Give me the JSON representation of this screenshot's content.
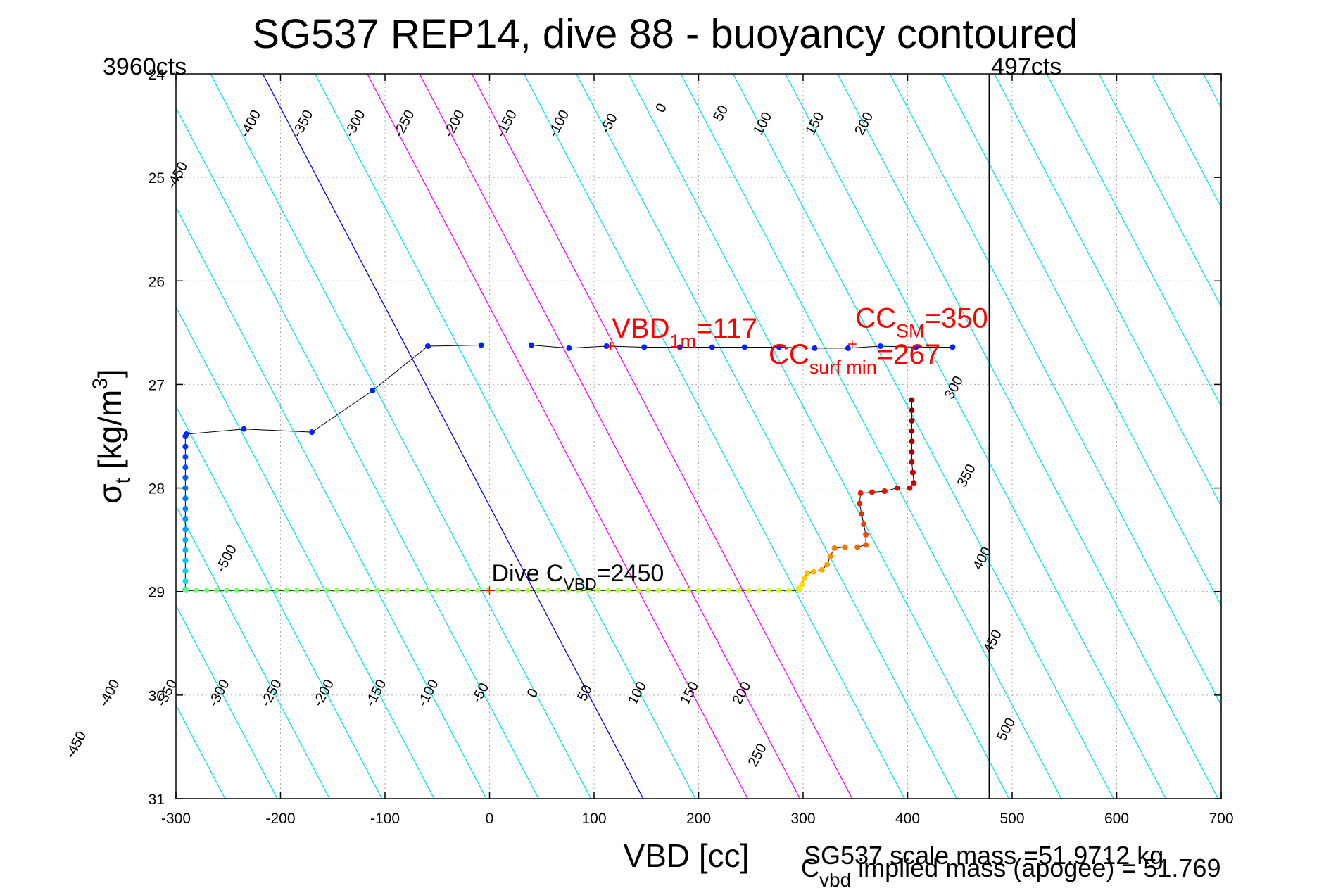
{
  "chart_data": {
    "type": "scatter",
    "title": "SG537 REP14, dive 88 - buoyancy contoured",
    "xlabel": "VBD [cc]",
    "ylabel_main": "σ",
    "ylabel_sub": "t",
    "ylabel_rest": " [kg/m",
    "ylabel_sup": "3",
    "ylabel_close": "]",
    "xlim": [
      -300,
      700
    ],
    "ylim": [
      24,
      31
    ],
    "y_reversed": true,
    "grid": true,
    "xticks": [
      -300,
      -200,
      -100,
      0,
      100,
      200,
      300,
      400,
      500,
      600,
      700
    ],
    "yticks": [
      24,
      25,
      26,
      27,
      28,
      29,
      30,
      31
    ],
    "colors": {
      "contour_negative": "#00e5ee",
      "contour_zero": "#0000dd",
      "contour_mid": "#ff00ff",
      "contour_positive": "#00e5ee",
      "track_line": "#000000",
      "annotation": "#ff0000"
    },
    "corner_labels": {
      "left": "3960cts",
      "right": "497cts",
      "right_line_x": 478
    },
    "buoyancy_contours": {
      "slope_cc_per_sigma": 52,
      "anchor_zero": {
        "x": 147,
        "y": 31
      },
      "levels": [
        -500,
        -450,
        -400,
        -350,
        -300,
        -250,
        -200,
        -150,
        -100,
        -50,
        0,
        50,
        100,
        150,
        200,
        250,
        300,
        350,
        400,
        450,
        500
      ],
      "mid_levels": [
        100,
        150,
        200
      ],
      "top_labels": [
        {
          "level": "-450",
          "x": -295,
          "y": 25.0
        },
        {
          "level": "-400",
          "x": -225,
          "y": 24.5
        },
        {
          "level": "-350",
          "x": -175,
          "y": 24.5
        },
        {
          "level": "-300",
          "x": -125,
          "y": 24.5
        },
        {
          "level": "-250",
          "x": -78,
          "y": 24.5
        },
        {
          "level": "-200",
          "x": -30,
          "y": 24.5
        },
        {
          "level": "-150",
          "x": 20,
          "y": 24.5
        },
        {
          "level": "-100",
          "x": 70,
          "y": 24.5
        },
        {
          "level": "-50",
          "x": 118,
          "y": 24.5
        },
        {
          "level": "0",
          "x": 168,
          "y": 24.35
        },
        {
          "level": "50",
          "x": 225,
          "y": 24.4
        },
        {
          "level": "100",
          "x": 265,
          "y": 24.5
        },
        {
          "level": "150",
          "x": 315,
          "y": 24.5
        },
        {
          "level": "200",
          "x": 362,
          "y": 24.5
        },
        {
          "level": "300",
          "x": 448,
          "y": 27.05
        },
        {
          "level": "350",
          "x": 460,
          "y": 27.9
        },
        {
          "level": "400",
          "x": 475,
          "y": 28.7
        },
        {
          "level": "450",
          "x": 485,
          "y": 29.5
        },
        {
          "level": "500",
          "x": 498,
          "y": 30.35
        }
      ],
      "left_labels": [
        {
          "level": "-500",
          "x": -248,
          "y": 28.7
        }
      ],
      "bottom_labels": [
        {
          "level": "-450",
          "x": -392,
          "y": 30.5
        },
        {
          "level": "-400",
          "x": -360,
          "y": 30.0
        },
        {
          "level": "-350",
          "x": -305,
          "y": 30.0
        },
        {
          "level": "-300",
          "x": -255,
          "y": 30.0
        },
        {
          "level": "-250",
          "x": -205,
          "y": 30.0
        },
        {
          "level": "-200",
          "x": -155,
          "y": 30.0
        },
        {
          "level": "-150",
          "x": -105,
          "y": 30.0
        },
        {
          "level": "-100",
          "x": -55,
          "y": 30.0
        },
        {
          "level": "-50",
          "x": -5,
          "y": 30.0
        },
        {
          "level": "0",
          "x": 45,
          "y": 30.0
        },
        {
          "level": "50",
          "x": 95,
          "y": 30.0
        },
        {
          "level": "100",
          "x": 145,
          "y": 30.0
        },
        {
          "level": "150",
          "x": 195,
          "y": 30.0
        },
        {
          "level": "200",
          "x": 245,
          "y": 30.0
        },
        {
          "level": "250",
          "x": 260,
          "y": 30.6
        }
      ]
    },
    "series": [
      {
        "label": "upper_blue",
        "color": "#0022ff",
        "points": [
          [
            -290,
            27.48
          ],
          [
            -235,
            27.43
          ],
          [
            -170,
            27.46
          ],
          [
            -112,
            27.06
          ],
          [
            -59,
            26.63
          ],
          [
            -8,
            26.62
          ],
          [
            40,
            26.62
          ],
          [
            76,
            26.65
          ],
          [
            112,
            26.63
          ],
          [
            148,
            26.64
          ],
          [
            182,
            26.64
          ],
          [
            213,
            26.64
          ],
          [
            244,
            26.64
          ],
          [
            277,
            26.64
          ],
          [
            311,
            26.65
          ],
          [
            343,
            26.65
          ],
          [
            374,
            26.63
          ],
          [
            408,
            26.64
          ],
          [
            443,
            26.64
          ]
        ]
      },
      {
        "label": "descent_column",
        "points": [
          [
            -291,
            27.5
          ],
          [
            -291,
            27.6
          ],
          [
            -291,
            27.7
          ],
          [
            -291,
            27.8
          ],
          [
            -291,
            27.9
          ],
          [
            -291,
            28.0
          ],
          [
            -291,
            28.1
          ],
          [
            -291,
            28.2
          ],
          [
            -291,
            28.3
          ],
          [
            -291,
            28.4
          ],
          [
            -291,
            28.5
          ],
          [
            -291,
            28.6
          ],
          [
            -291,
            28.7
          ],
          [
            -291,
            28.8
          ],
          [
            -291,
            28.9
          ],
          [
            -291,
            28.98
          ]
        ]
      },
      {
        "label": "bottom_green",
        "color": "#80ff60",
        "y": 28.99,
        "x_start": -290,
        "x_end": 296,
        "count": 62
      },
      {
        "label": "ascent_warm",
        "points": [
          [
            296,
            28.97
          ],
          [
            299,
            28.93
          ],
          [
            301,
            28.87
          ],
          [
            304,
            28.82
          ],
          [
            310,
            28.81
          ],
          [
            318,
            28.79
          ],
          [
            323,
            28.74
          ],
          [
            326,
            28.66
          ],
          [
            330,
            28.58
          ],
          [
            340,
            28.57
          ],
          [
            352,
            28.57
          ],
          [
            360,
            28.55
          ],
          [
            360,
            28.45
          ],
          [
            358,
            28.35
          ],
          [
            356,
            28.25
          ],
          [
            354,
            28.15
          ],
          [
            355,
            28.05
          ],
          [
            366,
            28.04
          ],
          [
            378,
            28.03
          ],
          [
            390,
            28.0
          ],
          [
            402,
            28.0
          ],
          [
            406,
            27.95
          ],
          [
            405,
            27.85
          ],
          [
            404,
            27.75
          ],
          [
            404,
            27.65
          ],
          [
            404,
            27.55
          ],
          [
            404,
            27.45
          ],
          [
            404,
            27.35
          ],
          [
            404,
            27.25
          ],
          [
            404,
            27.15
          ]
        ]
      }
    ],
    "markers": [
      {
        "x": 116,
        "y": 26.63
      },
      {
        "x": 347,
        "y": 26.61
      },
      {
        "x": 0,
        "y": 28.99
      }
    ],
    "annotations": [
      {
        "main": "VBD",
        "sub": "1m",
        "rest": "=117",
        "x": 117,
        "y": 26.55,
        "color": "#ff0000"
      },
      {
        "main": "CC",
        "sub": "SM",
        "rest": "=350",
        "x": 350,
        "y": 26.45,
        "color": "#ff0000"
      },
      {
        "main": "CC",
        "sub": "surf min",
        "rest": "=267",
        "x": 267,
        "y": 26.8,
        "color": "#ff0000"
      },
      {
        "main": "Dive C",
        "sub": "VBD",
        "rest": "=2450",
        "x": 2,
        "y": 28.9,
        "color": "#000000"
      }
    ],
    "footer": {
      "line1": "SG537 scale mass =51.9712 kg",
      "c_main": "C",
      "c_sub": "vbd",
      "c_rest": " implied mass (apogee) = 51.769"
    }
  }
}
